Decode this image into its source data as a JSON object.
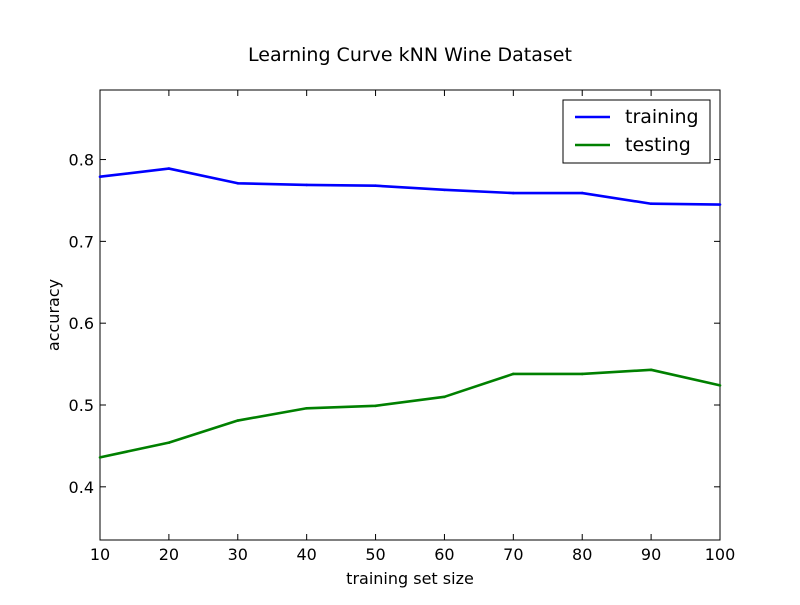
{
  "chart_data": {
    "type": "line",
    "title": "Learning Curve kNN Wine Dataset",
    "xlabel": "training set size",
    "ylabel": "accuracy",
    "xlim": [
      10,
      100
    ],
    "ylim": [
      0.335,
      0.885
    ],
    "xticks": [
      10,
      20,
      30,
      40,
      50,
      60,
      70,
      80,
      90,
      100
    ],
    "yticks": [
      0.4,
      0.5,
      0.6,
      0.7,
      0.8
    ],
    "ytick_labels": [
      "0.4",
      "0.5",
      "0.6",
      "0.7",
      "0.8"
    ],
    "grid": false,
    "legend_position": "top-right",
    "x": [
      10,
      20,
      30,
      40,
      50,
      60,
      70,
      80,
      90,
      100
    ],
    "series": [
      {
        "name": "training",
        "color": "#0000ff",
        "values": [
          0.779,
          0.789,
          0.771,
          0.769,
          0.768,
          0.763,
          0.759,
          0.759,
          0.746,
          0.745
        ]
      },
      {
        "name": "testing",
        "color": "#008000",
        "values": [
          0.436,
          0.454,
          0.481,
          0.496,
          0.499,
          0.51,
          0.538,
          0.538,
          0.543,
          0.524
        ]
      }
    ]
  }
}
